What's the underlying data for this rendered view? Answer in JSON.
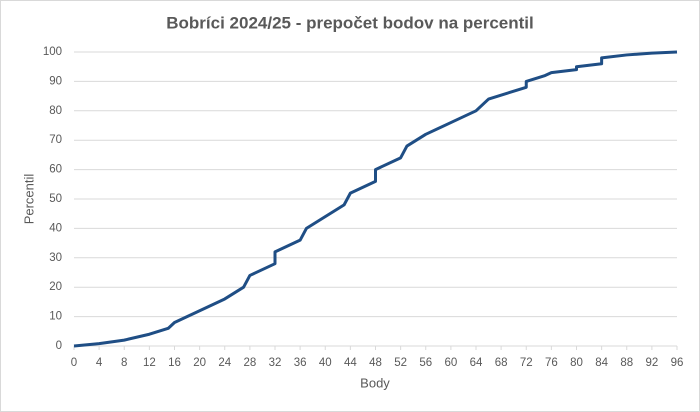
{
  "chart_data": {
    "type": "line",
    "title": "Bobríci 2024/25 - prepočet bodov na percentil",
    "x_label": "Body",
    "y_label": "Percentil",
    "x": [
      0,
      4,
      8,
      12,
      15,
      16,
      20,
      24,
      27,
      28,
      32,
      32,
      36,
      37,
      40,
      43,
      44,
      48,
      48,
      52,
      53,
      56,
      60,
      64,
      66,
      72,
      72,
      75,
      76,
      80,
      80,
      84,
      84,
      88,
      92,
      96
    ],
    "series": [
      {
        "name": "Percentil",
        "color": "#1f4e85",
        "values": [
          0,
          0.8,
          2,
          4,
          6,
          8,
          12,
          16,
          20,
          24,
          28,
          32,
          36,
          40,
          44,
          48,
          52,
          56,
          60,
          64,
          68,
          72,
          76,
          80,
          84,
          88,
          90,
          92,
          93,
          94,
          95,
          96,
          98,
          99,
          99.6,
          100
        ]
      }
    ],
    "xlim": [
      0,
      96
    ],
    "xticks": [
      0,
      4,
      8,
      12,
      16,
      20,
      24,
      28,
      32,
      36,
      40,
      44,
      48,
      52,
      56,
      60,
      64,
      68,
      72,
      76,
      80,
      84,
      88,
      92,
      96
    ],
    "ylim": [
      0,
      100
    ],
    "yticks": [
      0,
      10,
      20,
      30,
      40,
      50,
      60,
      70,
      80,
      90,
      100
    ],
    "grid": true
  }
}
